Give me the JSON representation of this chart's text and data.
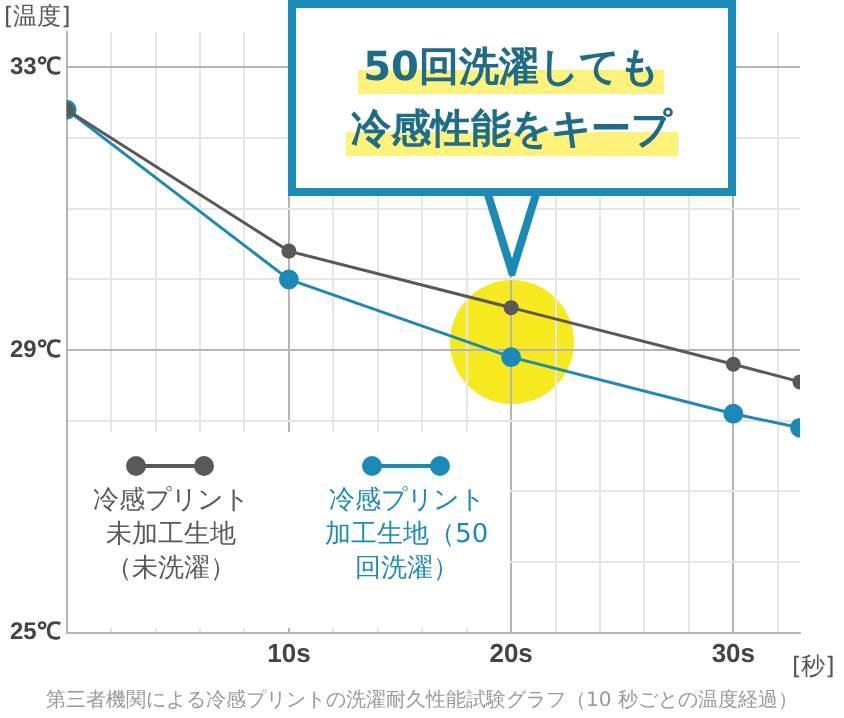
{
  "chart_data": {
    "type": "line",
    "ylabel": "[温度]",
    "xlabel": "[秒]",
    "x": [
      0,
      10,
      20,
      30,
      33
    ],
    "series": [
      {
        "name": "冷感プリント未加工生地（未洗濯）",
        "color": "#595959",
        "values": [
          32.4,
          30.4,
          29.6,
          28.8,
          28.55
        ]
      },
      {
        "name": "冷感プリント加工生地（50 回洗濯）",
        "color": "#1a8ab8",
        "values": [
          32.4,
          30.0,
          28.9,
          28.1,
          27.9
        ]
      }
    ],
    "xlim": [
      0,
      33
    ],
    "xticks": [
      {
        "value": 2,
        "label": null
      },
      {
        "value": 4,
        "label": null
      },
      {
        "value": 6,
        "label": null
      },
      {
        "value": 8,
        "label": null
      },
      {
        "value": 10,
        "label": "10s"
      },
      {
        "value": 12,
        "label": null
      },
      {
        "value": 14,
        "label": null
      },
      {
        "value": 16,
        "label": null
      },
      {
        "value": 18,
        "label": null
      },
      {
        "value": 20,
        "label": "20s"
      },
      {
        "value": 22,
        "label": null
      },
      {
        "value": 24,
        "label": null
      },
      {
        "value": 26,
        "label": null
      },
      {
        "value": 28,
        "label": null
      },
      {
        "value": 30,
        "label": "30s"
      },
      {
        "value": 32,
        "label": null
      }
    ],
    "ylim": [
      25,
      33.5
    ],
    "yticks": [
      {
        "value": 25,
        "label": "25℃"
      },
      {
        "value": 26,
        "label": null
      },
      {
        "value": 27,
        "label": null
      },
      {
        "value": 28,
        "label": null
      },
      {
        "value": 29,
        "label": "29℃"
      },
      {
        "value": 30,
        "label": null
      },
      {
        "value": 31,
        "label": null
      },
      {
        "value": 32,
        "label": null
      },
      {
        "value": 33,
        "label": "33℃"
      }
    ],
    "grid": true,
    "legend": "bottom left",
    "marker": "circle",
    "line_style": "solid",
    "annotations": [
      "50回洗濯しても",
      "冷感性能をキープ",
      "第三者機関による冷感プリントの洗濯耐久性能試験グラフ（10 秒ごとの温度経過）"
    ]
  }
}
